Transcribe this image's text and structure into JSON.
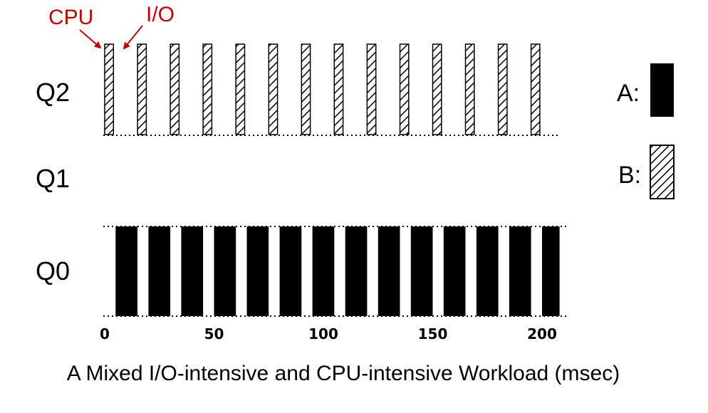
{
  "chart_data": {
    "type": "bar",
    "title": "",
    "xlabel": "A Mixed I/O-intensive and CPU-intensive Workload (msec)",
    "ylabel": "",
    "xlim": [
      0,
      205
    ],
    "x_ticks": [
      0,
      50,
      100,
      150,
      200
    ],
    "queues": [
      "Q2",
      "Q1",
      "Q0"
    ],
    "legend": [
      {
        "label": "A:",
        "pattern": "solid",
        "color": "#000000"
      },
      {
        "label": "B:",
        "pattern": "hatched",
        "color": "#000000"
      }
    ],
    "annotations": [
      {
        "text": "CPU",
        "color": "#c00000"
      },
      {
        "text": "I/O",
        "color": "#c00000"
      }
    ],
    "series": [
      {
        "job": "A",
        "queue": "Q0",
        "intervals": [
          [
            5,
            15
          ],
          [
            20,
            30
          ],
          [
            35,
            45
          ],
          [
            50,
            60
          ],
          [
            65,
            75
          ],
          [
            80,
            90
          ],
          [
            95,
            105
          ],
          [
            110,
            120
          ],
          [
            125,
            135
          ],
          [
            140,
            150
          ],
          [
            155,
            165
          ],
          [
            170,
            180
          ],
          [
            185,
            195
          ],
          [
            200,
            208
          ]
        ]
      },
      {
        "job": "B",
        "queue": "Q2",
        "intervals": [
          [
            0,
            4
          ],
          [
            15,
            19
          ],
          [
            30,
            34
          ],
          [
            45,
            49
          ],
          [
            60,
            64
          ],
          [
            75,
            79
          ],
          [
            90,
            94
          ],
          [
            105,
            109
          ],
          [
            120,
            124
          ],
          [
            135,
            139
          ],
          [
            150,
            154
          ],
          [
            165,
            169
          ],
          [
            180,
            184
          ],
          [
            195,
            199
          ]
        ]
      }
    ]
  }
}
